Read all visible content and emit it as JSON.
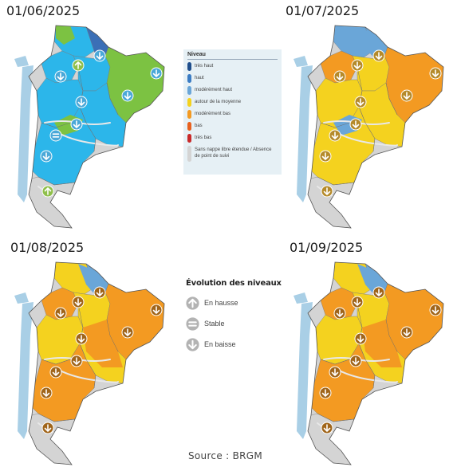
{
  "maps": [
    {
      "date": "01/06/2025",
      "theme": "jun"
    },
    {
      "date": "01/07/2025",
      "theme": "jul"
    },
    {
      "date": "01/08/2025",
      "theme": "aug"
    },
    {
      "date": "01/09/2025",
      "theme": "sep"
    }
  ],
  "legend": {
    "title": "Niveau",
    "items": [
      {
        "label": "très haut",
        "color": "#1f4e8c"
      },
      {
        "label": "haut",
        "color": "#3b7cc4"
      },
      {
        "label": "modérément haut",
        "color": "#6aa6d8"
      },
      {
        "label": "autour de la moyenne",
        "color": "#f4d21f"
      },
      {
        "label": "modérément bas",
        "color": "#f39a22"
      },
      {
        "label": "bas",
        "color": "#e8611f"
      },
      {
        "label": "très bas",
        "color": "#c92a2a"
      },
      {
        "label": "Sans nappe libre étendue / Absence de point de suivi",
        "color": "#d4d4d4"
      }
    ]
  },
  "evolution": {
    "title": "Évolution des niveaux",
    "items": [
      {
        "label": "En hausse",
        "icon": "arrow-up-icon"
      },
      {
        "label": "Stable",
        "icon": "equal-icon"
      },
      {
        "label": "En baisse",
        "icon": "arrow-down-icon"
      }
    ]
  },
  "source": "Source : BRGM"
}
